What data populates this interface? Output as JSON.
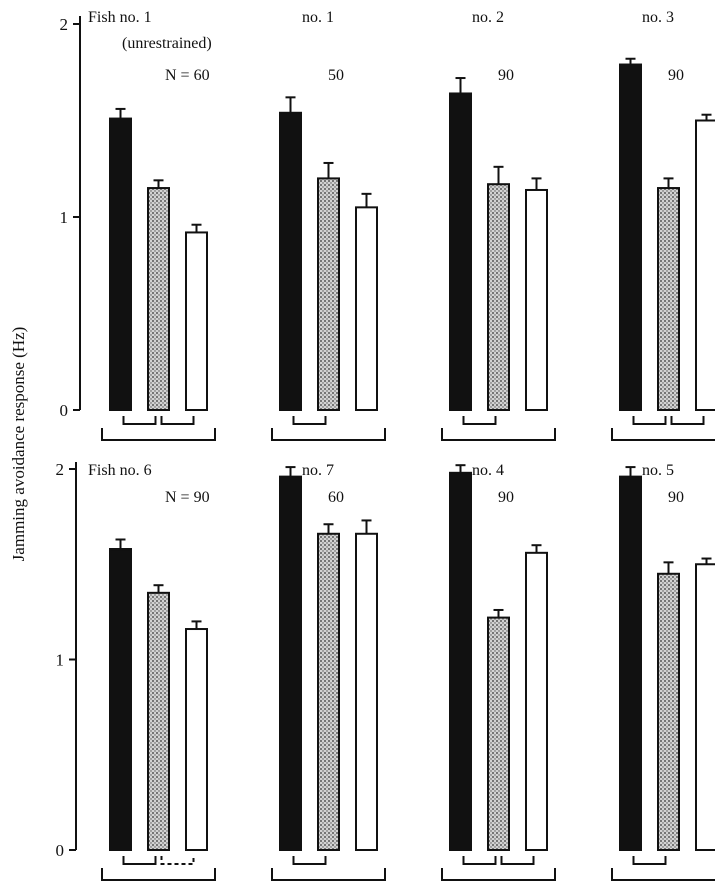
{
  "ylabel": "Jamming avoidance response (Hz)",
  "colors": {
    "ink": "#111111",
    "stipple": "#9a9a9a",
    "open": "#ffffff"
  },
  "chart_data": [
    {
      "type": "bar",
      "row": "top",
      "title_line1": "Fish no. 1",
      "title_line2": "(unrestrained)",
      "n_label": "N = 60",
      "categories": [
        "black",
        "stippled",
        "open"
      ],
      "values": [
        1.51,
        1.15,
        0.92
      ],
      "errors": [
        0.05,
        0.04,
        0.04
      ],
      "brackets": {
        "pairs": [
          "short",
          "short"
        ],
        "dashed_right": false
      },
      "ylim": [
        0,
        2
      ],
      "yticks": [
        "0",
        "1",
        "2"
      ],
      "show_yticks": true
    },
    {
      "type": "bar",
      "row": "top",
      "title_line1": "no. 1",
      "title_line2": "",
      "n_label": "50",
      "categories": [
        "black",
        "stippled",
        "open"
      ],
      "values": [
        1.54,
        1.2,
        1.05
      ],
      "errors": [
        0.08,
        0.08,
        0.07
      ],
      "brackets": {
        "pairs": [
          "short"
        ],
        "dashed_right": false
      },
      "ylim": [
        0,
        2
      ],
      "yticks": [],
      "show_yticks": false
    },
    {
      "type": "bar",
      "row": "top",
      "title_line1": "no. 2",
      "title_line2": "",
      "n_label": "90",
      "categories": [
        "black",
        "stippled",
        "open"
      ],
      "values": [
        1.64,
        1.17,
        1.14
      ],
      "errors": [
        0.08,
        0.09,
        0.06
      ],
      "brackets": {
        "pairs": [
          "short"
        ],
        "dashed_right": false
      },
      "ylim": [
        0,
        2
      ],
      "yticks": [],
      "show_yticks": false
    },
    {
      "type": "bar",
      "row": "top",
      "title_line1": "no. 3",
      "title_line2": "",
      "n_label": "90",
      "categories": [
        "black",
        "stippled",
        "open"
      ],
      "values": [
        1.79,
        1.15,
        1.5
      ],
      "errors": [
        0.03,
        0.05,
        0.03
      ],
      "brackets": {
        "pairs": [
          "short",
          "short"
        ],
        "dashed_right": false
      },
      "ylim": [
        0,
        2
      ],
      "yticks": [],
      "show_yticks": false
    },
    {
      "type": "bar",
      "row": "bottom",
      "title_line1": "Fish no. 6",
      "title_line2": "",
      "n_label": "N = 90",
      "categories": [
        "black",
        "stippled",
        "open"
      ],
      "values": [
        1.58,
        1.35,
        1.16
      ],
      "errors": [
        0.05,
        0.04,
        0.04
      ],
      "brackets": {
        "pairs": [
          "short",
          "short"
        ],
        "dashed_right": true
      },
      "ylim": [
        0,
        2
      ],
      "yticks": [
        "0",
        "1",
        "2"
      ],
      "show_yticks": true
    },
    {
      "type": "bar",
      "row": "bottom",
      "title_line1": "no. 7",
      "title_line2": "",
      "n_label": "60",
      "categories": [
        "black",
        "stippled",
        "open"
      ],
      "values": [
        1.96,
        1.66,
        1.66
      ],
      "errors": [
        0.05,
        0.05,
        0.07
      ],
      "brackets": {
        "pairs": [
          "short"
        ],
        "dashed_right": false
      },
      "ylim": [
        0,
        2
      ],
      "yticks": [],
      "show_yticks": false
    },
    {
      "type": "bar",
      "row": "bottom",
      "title_line1": "no. 4",
      "title_line2": "",
      "n_label": "90",
      "categories": [
        "black",
        "stippled",
        "open"
      ],
      "values": [
        1.98,
        1.22,
        1.56
      ],
      "errors": [
        0.04,
        0.04,
        0.04
      ],
      "brackets": {
        "pairs": [
          "short",
          "short"
        ],
        "dashed_right": false
      },
      "ylim": [
        0,
        2
      ],
      "yticks": [],
      "show_yticks": false
    },
    {
      "type": "bar",
      "row": "bottom",
      "title_line1": "no. 5",
      "title_line2": "",
      "n_label": "90",
      "categories": [
        "black",
        "stippled",
        "open"
      ],
      "values": [
        1.96,
        1.45,
        1.5
      ],
      "errors": [
        0.05,
        0.06,
        0.03
      ],
      "brackets": {
        "pairs": [
          "short"
        ],
        "dashed_right": false
      },
      "ylim": [
        0,
        2
      ],
      "yticks": [],
      "show_yticks": false
    }
  ]
}
